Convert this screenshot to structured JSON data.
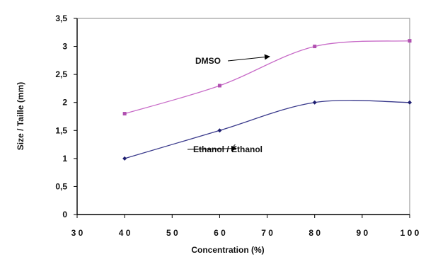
{
  "chart_data": {
    "type": "line",
    "title": "",
    "xlabel": "Concentration (%)",
    "ylabel": "Size / Taille (mm)",
    "xlim": [
      30,
      100
    ],
    "ylim": [
      0,
      3.5
    ],
    "x_ticks": [
      "3 0",
      "4 0",
      "5 0",
      "6 0",
      "7 0",
      "8 0",
      "9 0",
      "1 0 0"
    ],
    "y_ticks": [
      "0",
      "0,5",
      "1",
      "1,5",
      "2",
      "2,5",
      "3",
      "3,5"
    ],
    "grid": false,
    "legend": "none",
    "series": [
      {
        "name": "DMSO",
        "color": "#c86cc8",
        "marker_color": "#b050b0",
        "x": [
          40,
          60,
          80,
          100
        ],
        "y": [
          1.8,
          2.3,
          3.0,
          3.1
        ]
      },
      {
        "name": "Ethanol / Éthanol",
        "color": "#3a3a8c",
        "marker_color": "#1e1e70",
        "x": [
          40,
          60,
          80,
          100
        ],
        "y": [
          1.0,
          1.5,
          2.0,
          2.0
        ]
      }
    ],
    "annotations": [
      {
        "text": "DMSO",
        "series": 0,
        "arrow_to": [
          70.5,
          2.82
        ]
      },
      {
        "text": "Ethanol / Éthanol",
        "series": 1,
        "arrow_to": [
          63.5,
          1.18
        ]
      }
    ]
  }
}
